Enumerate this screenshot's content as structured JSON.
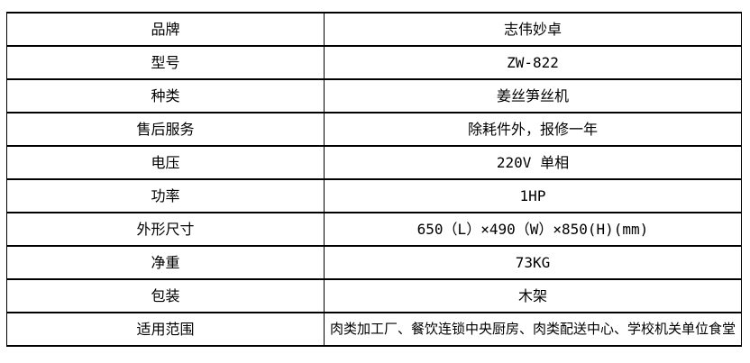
{
  "spec_table": {
    "border_color": "#000000",
    "background_color": "#ffffff",
    "text_color": "#000000",
    "rows": [
      {
        "label": "品牌",
        "value": "志伟妙卓"
      },
      {
        "label": "型号",
        "value": "ZW-822"
      },
      {
        "label": "种类",
        "value": "姜丝笋丝机"
      },
      {
        "label": "售后服务",
        "value": "除耗件外，报修一年"
      },
      {
        "label": "电压",
        "value": "220V 单相"
      },
      {
        "label": "功率",
        "value": "1HP"
      },
      {
        "label": "外形尺寸",
        "value": "650（L）×490（W）×850(H)(mm)"
      },
      {
        "label": "净重",
        "value": "73KG"
      },
      {
        "label": "包装",
        "value": "木架"
      },
      {
        "label": "适用范围",
        "value": "肉类加工厂、餐饮连锁中央厨房、肉类配送中心、学校机关单位食堂"
      }
    ]
  }
}
